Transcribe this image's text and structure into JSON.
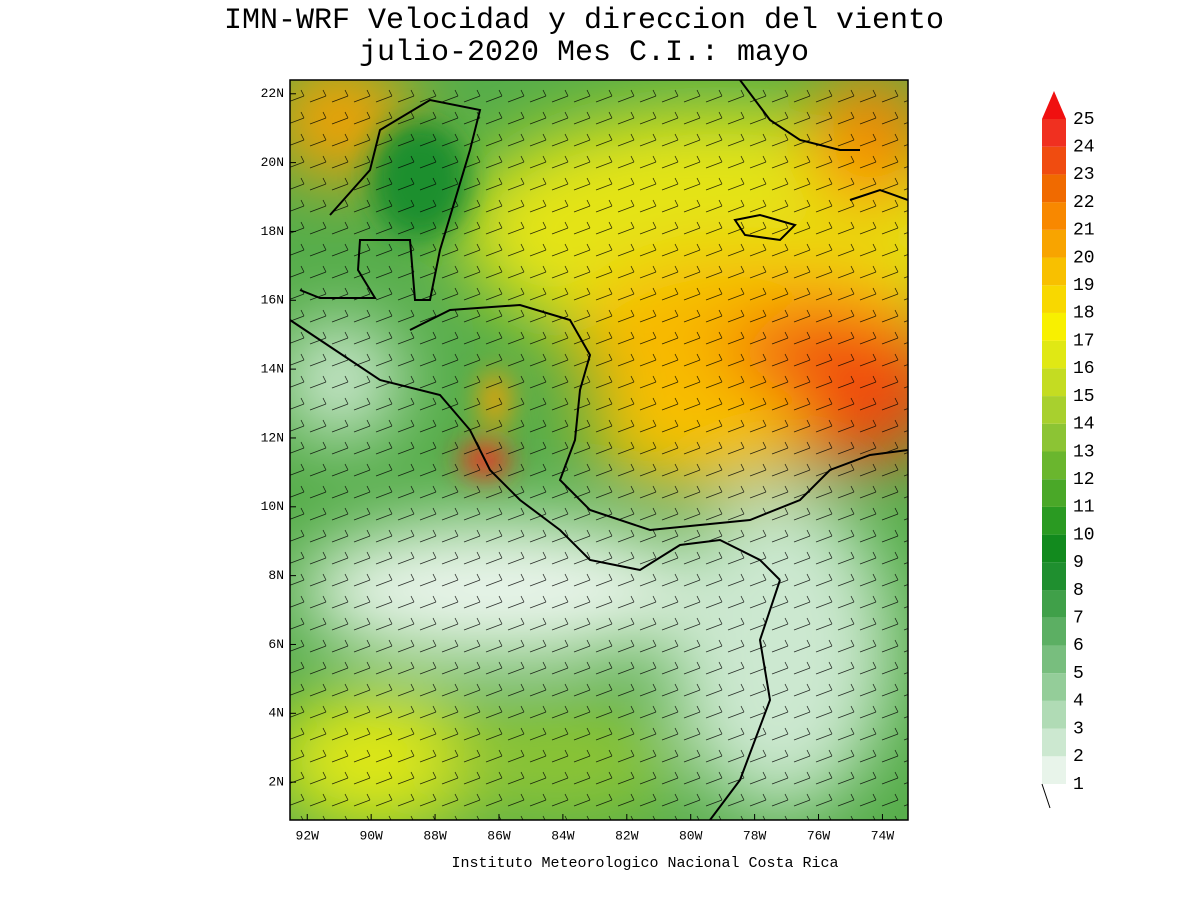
{
  "map": {
    "title": "IMN-WRF Velocidad y direccion del viento",
    "subtitle": "julio-2020 Mes C.I.: mayo",
    "footer": "Instituto Meteorologico Nacional Costa Rica",
    "xlim": [
      -92.54,
      -73.2
    ],
    "ylim": [
      0.9,
      22.4
    ],
    "xticks": [
      {
        "value": -92,
        "label": "92W"
      },
      {
        "value": -90,
        "label": "90W"
      },
      {
        "value": -88,
        "label": "88W"
      },
      {
        "value": -86,
        "label": "86W"
      },
      {
        "value": -84,
        "label": "84W"
      },
      {
        "value": -82,
        "label": "82W"
      },
      {
        "value": -80,
        "label": "80W"
      },
      {
        "value": -78,
        "label": "78W"
      },
      {
        "value": -76,
        "label": "76W"
      },
      {
        "value": -74,
        "label": "74W"
      }
    ],
    "yticks": [
      {
        "value": 2,
        "label": "2N"
      },
      {
        "value": 4,
        "label": "4N"
      },
      {
        "value": 6,
        "label": "6N"
      },
      {
        "value": 8,
        "label": "8N"
      },
      {
        "value": 10,
        "label": "10N"
      },
      {
        "value": 12,
        "label": "12N"
      },
      {
        "value": 14,
        "label": "14N"
      },
      {
        "value": 16,
        "label": "16N"
      },
      {
        "value": 18,
        "label": "18N"
      },
      {
        "value": 20,
        "label": "20N"
      },
      {
        "value": 22,
        "label": "22N"
      }
    ],
    "colorbar": {
      "levels": [
        1,
        2,
        3,
        4,
        5,
        6,
        7,
        8,
        9,
        10,
        11,
        12,
        13,
        14,
        15,
        16,
        17,
        18,
        19,
        20,
        21,
        22,
        23,
        24,
        25
      ],
      "colors": [
        "#e8f4ea",
        "#cce8d0",
        "#b0dbb5",
        "#94cd99",
        "#78be7e",
        "#5caf63",
        "#40a049",
        "#1f8f2f",
        "#128a1e",
        "#2a9a22",
        "#4aa828",
        "#6ab62e",
        "#8cc434",
        "#a8d02e",
        "#c4dc22",
        "#e0e814",
        "#f8f000",
        "#f8d800",
        "#f8c000",
        "#f8a400",
        "#f88800",
        "#f06a00",
        "#f04c10",
        "#f03020",
        "#f01010"
      ]
    }
  }
}
